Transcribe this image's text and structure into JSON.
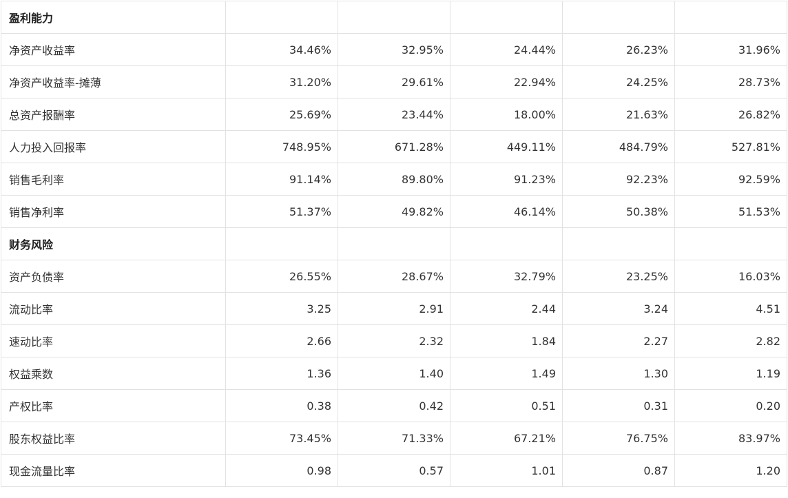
{
  "sections": [
    {
      "title": "盈利能力",
      "rows": [
        {
          "label": "净资产收益率",
          "values": [
            "34.46%",
            "32.95%",
            "24.44%",
            "26.23%",
            "31.96%"
          ]
        },
        {
          "label": "净资产收益率-摊薄",
          "values": [
            "31.20%",
            "29.61%",
            "22.94%",
            "24.25%",
            "28.73%"
          ]
        },
        {
          "label": "总资产报酬率",
          "values": [
            "25.69%",
            "23.44%",
            "18.00%",
            "21.63%",
            "26.82%"
          ]
        },
        {
          "label": "人力投入回报率",
          "values": [
            "748.95%",
            "671.28%",
            "449.11%",
            "484.79%",
            "527.81%"
          ]
        },
        {
          "label": "销售毛利率",
          "values": [
            "91.14%",
            "89.80%",
            "91.23%",
            "92.23%",
            "92.59%"
          ]
        },
        {
          "label": "销售净利率",
          "values": [
            "51.37%",
            "49.82%",
            "46.14%",
            "50.38%",
            "51.53%"
          ]
        }
      ]
    },
    {
      "title": "财务风险",
      "rows": [
        {
          "label": "资产负债率",
          "values": [
            "26.55%",
            "28.67%",
            "32.79%",
            "23.25%",
            "16.03%"
          ]
        },
        {
          "label": "流动比率",
          "values": [
            "3.25",
            "2.91",
            "2.44",
            "3.24",
            "4.51"
          ]
        },
        {
          "label": "速动比率",
          "values": [
            "2.66",
            "2.32",
            "1.84",
            "2.27",
            "2.82"
          ]
        },
        {
          "label": "权益乘数",
          "values": [
            "1.36",
            "1.40",
            "1.49",
            "1.30",
            "1.19"
          ]
        },
        {
          "label": "产权比率",
          "values": [
            "0.38",
            "0.42",
            "0.51",
            "0.31",
            "0.20"
          ]
        },
        {
          "label": "股东权益比率",
          "values": [
            "73.45%",
            "71.33%",
            "67.21%",
            "76.75%",
            "83.97%"
          ]
        },
        {
          "label": "现金流量比率",
          "values": [
            "0.98",
            "0.57",
            "1.01",
            "0.87",
            "1.20"
          ]
        }
      ]
    }
  ]
}
